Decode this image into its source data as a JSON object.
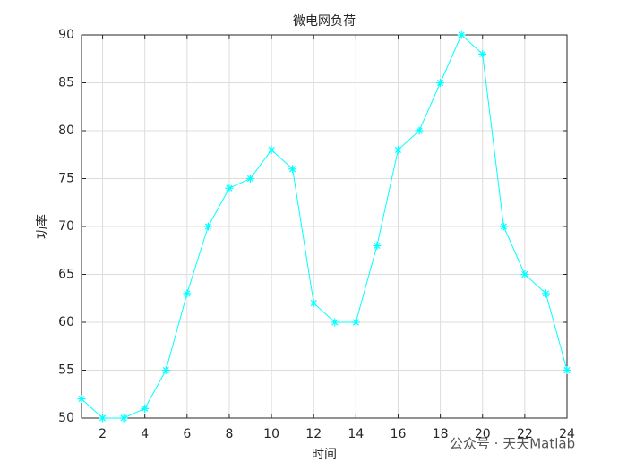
{
  "chart_data": {
    "type": "line",
    "title": "微电网负荷",
    "xlabel": "时间",
    "ylabel": "功率",
    "x": [
      1,
      2,
      3,
      4,
      5,
      6,
      7,
      8,
      9,
      10,
      11,
      12,
      13,
      14,
      15,
      16,
      17,
      18,
      19,
      20,
      21,
      22,
      23,
      24
    ],
    "values": [
      52,
      50,
      50,
      51,
      55,
      63,
      70,
      74,
      75,
      78,
      76,
      62,
      60,
      60,
      68,
      78,
      80,
      85,
      90,
      88,
      70,
      65,
      63,
      55
    ],
    "color": "#00ffff",
    "marker": "asterisk",
    "xlim": [
      1,
      24
    ],
    "xticks": [
      2,
      4,
      6,
      8,
      10,
      12,
      14,
      16,
      18,
      20,
      22,
      24
    ],
    "ylim": [
      50,
      90
    ],
    "yticks": [
      50,
      55,
      60,
      65,
      70,
      75,
      80,
      85,
      90
    ],
    "grid": true,
    "watermark": "公众号 · 天天Matlab"
  }
}
